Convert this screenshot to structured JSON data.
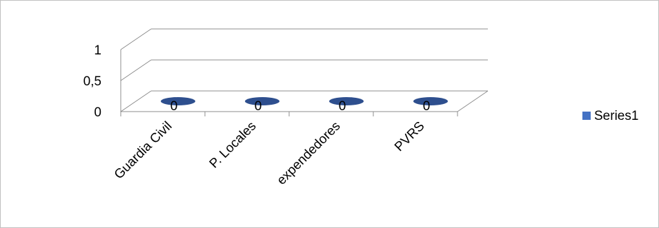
{
  "chart_data": {
    "type": "bar",
    "categories": [
      "Guardia Civil",
      "P. Locales",
      "expendedores",
      "PVRS"
    ],
    "series": [
      {
        "name": "Series1",
        "values": [
          0,
          0,
          0,
          0
        ]
      }
    ],
    "y_ticks": [
      "0",
      "0,5",
      "1"
    ],
    "ylim": [
      0,
      1
    ],
    "data_labels": [
      "0",
      "0",
      "0",
      "0"
    ],
    "legend": {
      "placement": "right",
      "entries": [
        "Series1"
      ]
    },
    "grid": true,
    "three_d": true,
    "colors": {
      "series1": "#4472C4",
      "series1_dark": "#2E4F8E",
      "grid": "#8c8c8c"
    }
  }
}
